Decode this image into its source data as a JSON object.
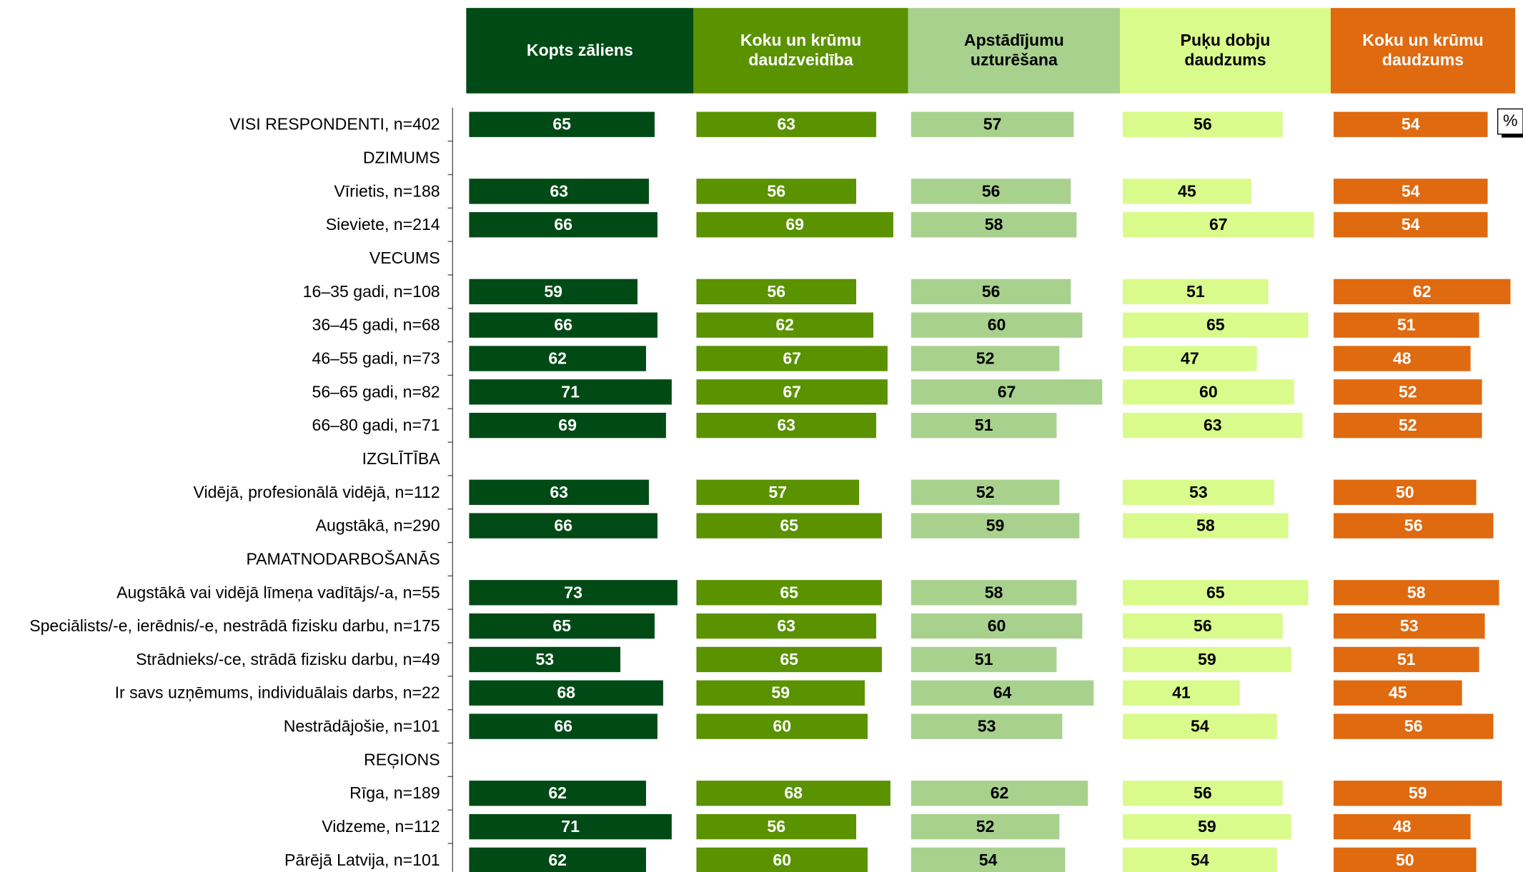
{
  "chart_data": {
    "type": "bar",
    "orientation": "horizontal",
    "unit": "%",
    "xlim": [
      0,
      80
    ],
    "categories": [
      "VISI RESPONDENTI, n=402",
      "DZIMUMS",
      "Vīrietis, n=188",
      "Sieviete, n=214",
      "VECUMS",
      "16–35 gadi, n=108",
      "36–45 gadi, n=68",
      "46–55 gadi, n=73",
      "56–65 gadi, n=82",
      "66–80 gadi, n=71",
      "IZGLĪTĪBA",
      "Vidējā, profesionālā vidējā, n=112",
      "Augstākā, n=290",
      "PAMATNODARBOŠANĀS",
      "Augstākā vai vidējā līmeņa vadītājs/-a, n=55",
      "Speciālists/-e, ierēdnis/-e, nestrādā fizisku darbu, n=175",
      "Strādnieks/-ce, strādā fizisku darbu, n=49",
      "Ir savs uzņēmums, individuālais darbs, n=22",
      "Nestrādājošie, n=101",
      "REĢIONS",
      "Rīga, n=189",
      "Vidzeme, n=112",
      "Pārējā Latvija, n=101"
    ],
    "series": [
      {
        "name": "Kopts zāliens",
        "color": "#004a16",
        "values": [
          65,
          null,
          63,
          66,
          null,
          59,
          66,
          62,
          71,
          69,
          null,
          63,
          66,
          null,
          73,
          65,
          53,
          68,
          66,
          null,
          62,
          71,
          62
        ]
      },
      {
        "name": "Koku un krūmu daudzveidība",
        "color": "#5a9200",
        "values": [
          63,
          null,
          56,
          69,
          null,
          56,
          62,
          67,
          67,
          63,
          null,
          57,
          65,
          null,
          65,
          63,
          65,
          59,
          60,
          null,
          68,
          56,
          60
        ]
      },
      {
        "name": "Apstādījumu uzturēšana",
        "color": "#a9d18e",
        "values": [
          57,
          null,
          56,
          58,
          null,
          56,
          60,
          52,
          67,
          51,
          null,
          52,
          59,
          null,
          58,
          60,
          51,
          64,
          53,
          null,
          62,
          52,
          54
        ]
      },
      {
        "name": "Puķu dobju daudzums",
        "color": "#d9fb8c",
        "values": [
          56,
          null,
          45,
          67,
          null,
          51,
          65,
          47,
          60,
          63,
          null,
          53,
          58,
          null,
          65,
          56,
          59,
          41,
          54,
          null,
          56,
          59,
          54
        ]
      },
      {
        "name": "Koku un krūmu daudzums",
        "color": "#df6a10",
        "values": [
          54,
          null,
          54,
          54,
          null,
          62,
          51,
          48,
          52,
          52,
          null,
          50,
          56,
          null,
          58,
          53,
          51,
          45,
          56,
          null,
          59,
          48,
          50
        ]
      }
    ]
  }
}
